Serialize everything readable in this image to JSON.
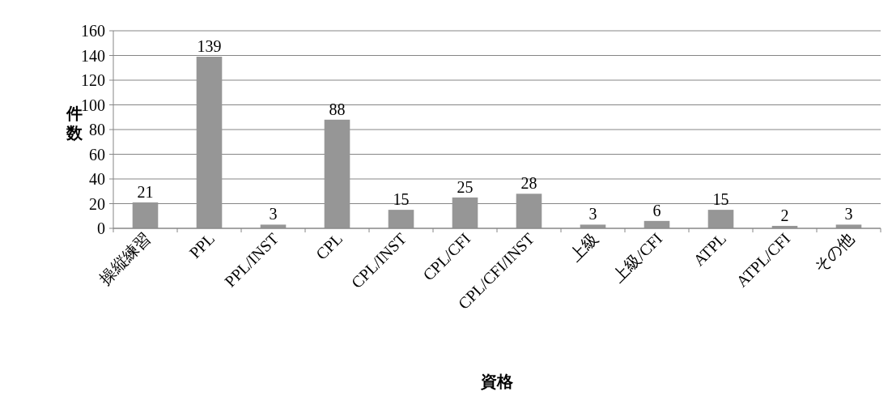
{
  "chart_data": {
    "type": "bar",
    "xlabel": "資格",
    "ylabel": "件数",
    "categories": [
      "操縦練習",
      "PPL",
      "PPL/INST",
      "CPL",
      "CPL/INST",
      "CPL/CFI",
      "CPL/CFI/INST",
      "上級",
      "上級/CFI",
      "ATPL",
      "ATPL/CFI",
      "その他"
    ],
    "values": [
      21,
      139,
      3,
      88,
      15,
      25,
      28,
      3,
      6,
      15,
      2,
      3
    ],
    "color": "#969696",
    "ylim": [
      0,
      160
    ],
    "yticks": [
      0,
      20,
      40,
      60,
      80,
      100,
      120,
      140,
      160
    ],
    "grid": "y",
    "data_labels": true
  }
}
